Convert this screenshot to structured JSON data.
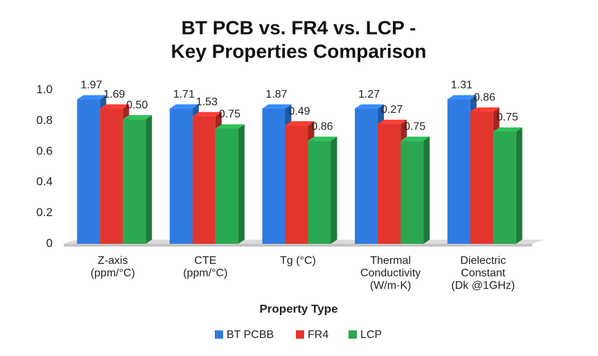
{
  "chart_data": {
    "type": "bar3d",
    "title": [
      "BT PCB vs. FR4 vs. LCP -",
      "Key Properties Comparison"
    ],
    "x_label": "Property Type",
    "categories": [
      [
        "Z-axis",
        "(ppm/°C)"
      ],
      [
        "CTE",
        "(ppm/°C)"
      ],
      [
        "Tg (°C)"
      ],
      [
        "Thermal",
        "Conductivity",
        "(W/m·K)"
      ],
      [
        "Dielectric",
        "Constant",
        "(Dk @1GHz)"
      ]
    ],
    "series": [
      {
        "name": "BT PCBB",
        "color": "#2f7be2",
        "values": [
          0.94,
          0.88,
          0.88,
          0.88,
          0.94
        ],
        "annotations": [
          "1.97",
          "1.71",
          "1.87",
          "1.27",
          "1.31"
        ]
      },
      {
        "name": "FR4",
        "color": "#e2352d",
        "values": [
          0.88,
          0.83,
          0.77,
          0.78,
          0.86
        ],
        "annotations": [
          "1.69",
          "1.53",
          "0.49",
          "0.27",
          "0.86"
        ]
      },
      {
        "name": "LCP",
        "color": "#2aa84f",
        "values": [
          0.81,
          0.75,
          0.67,
          0.67,
          0.73
        ],
        "annotations": [
          "0.50",
          "0.75",
          "0.86",
          "0.75",
          "0.75"
        ]
      }
    ],
    "ylim": [
      0,
      1
    ],
    "yticks": [
      0,
      0.2,
      0.4,
      0.6,
      0.8,
      {
        "value": 1,
        "label": "1.0"
      }
    ]
  }
}
